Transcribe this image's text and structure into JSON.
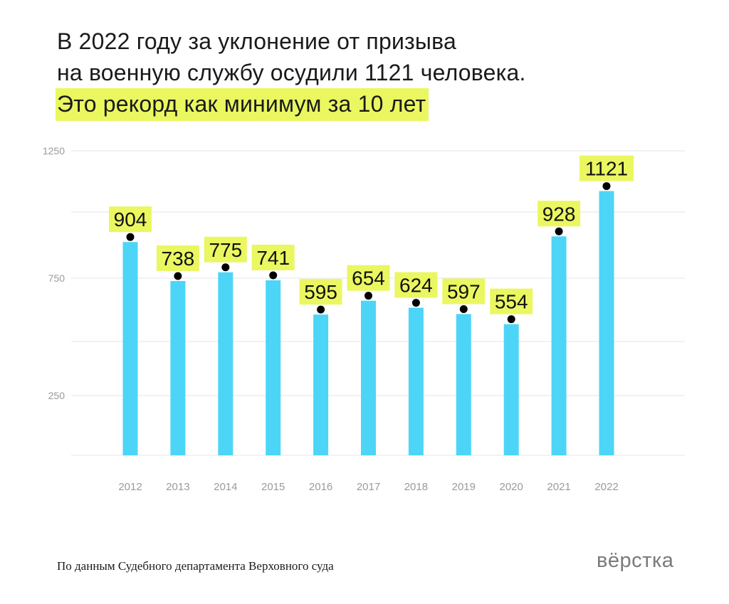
{
  "title": {
    "line1": "В 2022 году за уклонение от призыва",
    "line2": "на военную службу осудили 1121 человека.",
    "line3": "Это рекорд как минимум за 10 лет"
  },
  "chart_data": {
    "type": "bar",
    "categories": [
      "2012",
      "2013",
      "2014",
      "2015",
      "2016",
      "2017",
      "2018",
      "2019",
      "2020",
      "2021",
      "2022"
    ],
    "values": [
      904,
      738,
      775,
      741,
      595,
      654,
      624,
      597,
      554,
      928,
      1121
    ],
    "yticks": [
      "250",
      "750",
      "1250"
    ],
    "ylim": [
      0,
      1250
    ],
    "grid": true,
    "title": "",
    "xlabel": "",
    "ylabel": ""
  },
  "colors": {
    "bar": "#4dd5f7",
    "highlight": "#eaf760",
    "dot": "#000000",
    "grid": "#e6e6e6",
    "tick_text": "#9a9a9a"
  },
  "footer": {
    "source": "По данным Судебного департамента Верховного суда",
    "logo": "вёрстка"
  }
}
